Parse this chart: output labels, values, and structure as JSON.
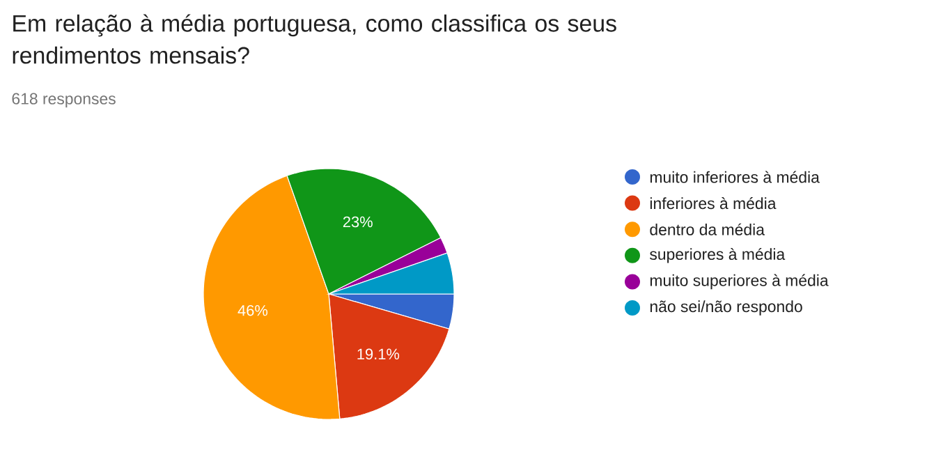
{
  "chart_data": {
    "type": "pie",
    "title": "Em relação à média portuguesa, como classifica os seus rendimentos mensais?",
    "subtitle": "618 responses",
    "categories": [
      "muito inferiores à média",
      "inferiores à média",
      "dentro da média",
      "superiores à média",
      "muito superiores à média",
      "não sei/não respondo"
    ],
    "values": [
      4.5,
      19.1,
      46,
      23,
      2.1,
      5.3
    ],
    "colors": [
      "#3366cc",
      "#dc3912",
      "#ff9900",
      "#109618",
      "#990099",
      "#0099c6"
    ],
    "value_labels": [
      null,
      "19.1%",
      "46%",
      "23%",
      null,
      null
    ],
    "legend": "right"
  }
}
